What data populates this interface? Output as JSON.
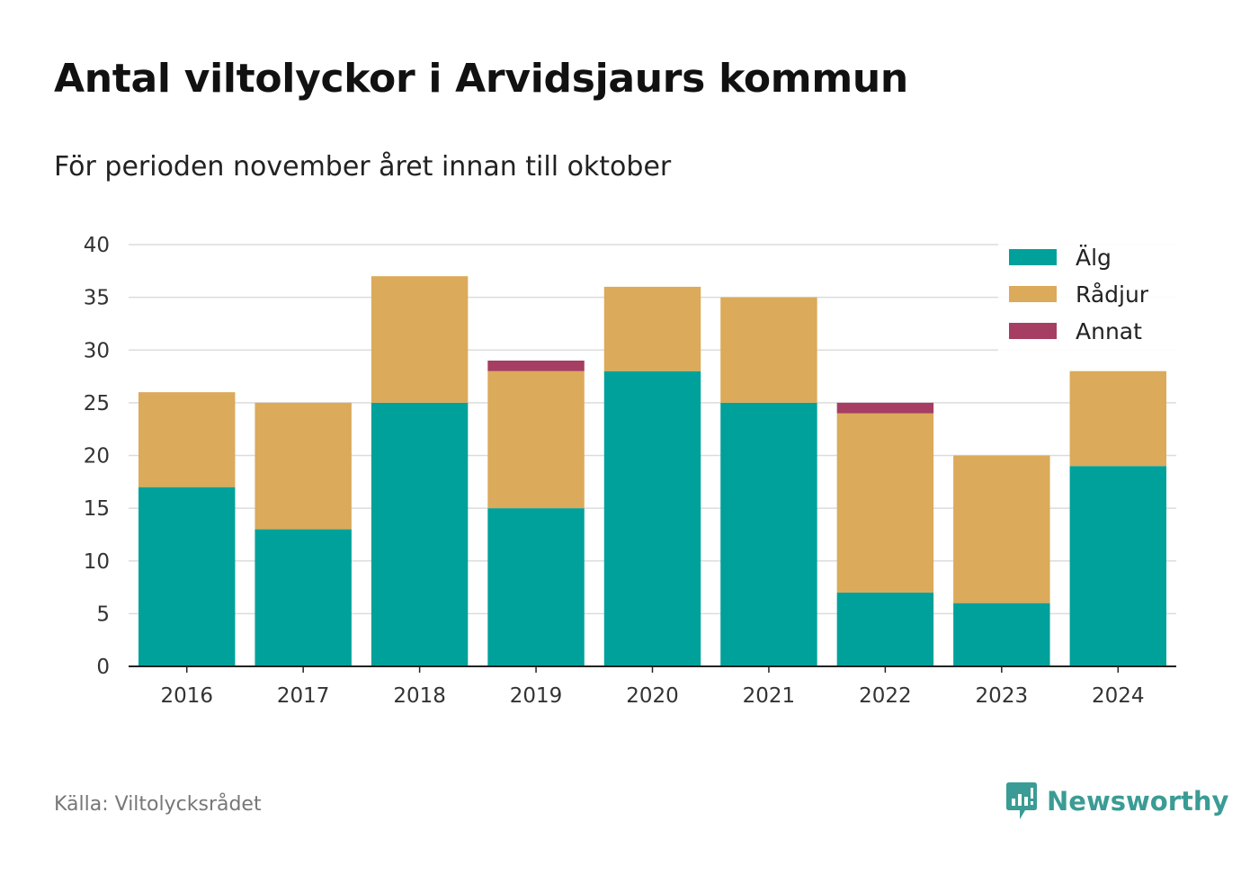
{
  "header": {
    "title": "Antal viltolyckor i Arvidsjaurs kommun",
    "subtitle": "För perioden november året innan till oktober"
  },
  "footer": {
    "source": "Källa: Viltolycksrådet",
    "brand": "Newsworthy",
    "brand_color": "#3a9c94"
  },
  "chart_data": {
    "type": "bar",
    "stacked": true,
    "categories": [
      "2016",
      "2017",
      "2018",
      "2019",
      "2020",
      "2021",
      "2022",
      "2023",
      "2024"
    ],
    "series": [
      {
        "name": "Älg",
        "color": "#00a19a",
        "values": [
          17,
          13,
          25,
          15,
          28,
          25,
          7,
          6,
          19
        ]
      },
      {
        "name": "Rådjur",
        "color": "#dbaa5a",
        "values": [
          9,
          12,
          12,
          13,
          8,
          10,
          17,
          14,
          9
        ]
      },
      {
        "name": "Annat",
        "color": "#a63d63",
        "values": [
          0,
          0,
          0,
          1,
          0,
          0,
          1,
          0,
          0
        ]
      }
    ],
    "yticks": [
      "0",
      "5",
      "10",
      "15",
      "20",
      "25",
      "30",
      "35",
      "40"
    ],
    "ylim": [
      0,
      40
    ],
    "grid": true,
    "legend_position": "top-right"
  }
}
